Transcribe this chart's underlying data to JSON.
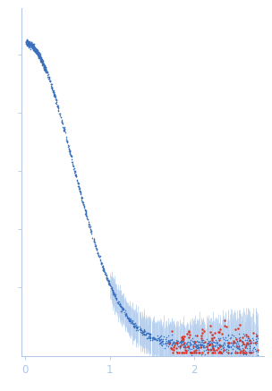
{
  "title": "",
  "xlabel": "",
  "ylabel": "",
  "xlim": [
    -0.04,
    2.82
  ],
  "ylim": [
    -0.018,
    0.58
  ],
  "xticks": [
    0,
    1,
    2
  ],
  "background_color": "#ffffff",
  "axis_color": "#aec6e8",
  "tick_color": "#aec6e8",
  "dot_color_blue": "#3a6fbc",
  "dot_color_red": "#e03020",
  "error_color": "#b8d0ee",
  "seed": 42,
  "Rg": 2.2,
  "I0": 0.52,
  "n_low": 400,
  "n_mid": 300,
  "n_high": 600,
  "n_red": 130
}
